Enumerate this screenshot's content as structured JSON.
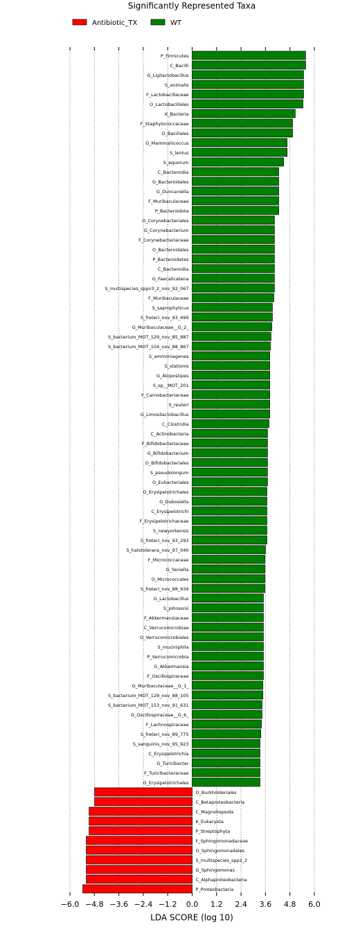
{
  "chart_data": {
    "type": "barh",
    "title": "Significantly Represented Taxa",
    "x_label": "LDA SCORE (log 10)",
    "categories": [
      "P_Firmicutes",
      "C_Bacilli",
      "G_Ligilactobacillus",
      "S_animalis",
      "F_Lactobacillaceae",
      "O_Lactobacillales",
      "K_Bacteria",
      "F_Staphylococcaceae",
      "O_Bacillales",
      "G_Mammaliicoccus",
      "S_lentus",
      "S_equorum",
      "C_Bacteroidia",
      "O_Bacteroidales",
      "G_Duncaniella",
      "F_Muribaculaceae",
      "P_Bacteroidota",
      "O_Corynebacteriales",
      "G_Corynebacterium",
      "F_Corynebacteriaceae",
      "O_Bacteroidales",
      "P_Bacteroidetes",
      "C_Bacteroidia",
      "G_Faecalicatena",
      "S_multispecies_sppn3_2_nov_92_067",
      "F_Muribaculaceae",
      "S_saprophyticus",
      "S_freteri_nov_93_699",
      "G_Muribaculaceae__G_2_",
      "S_bacterium_MOT_129_nov_85_887",
      "S_bacterium_MOT_104_nov_88_867",
      "S_ammoniagenes",
      "S_stationis",
      "G_Atopostipes",
      "S_sp__MOT_201",
      "F_Carnobacteriaceae",
      "S_reuteri",
      "G_Limosilactobacillus",
      "C_Clostridia",
      "C_Actinobacteria",
      "F_Bifidobacteriaceae",
      "G_Bifidobacterium",
      "O_Bifidobacteriales",
      "S_pseudolongum",
      "O_Eubacteriales",
      "O_Erysipelotrichales",
      "G_Dubosiella",
      "C_Erysipelotrichi",
      "F_Erysipelotrichaceae",
      "S_newyorkensis",
      "S_freteri_nov_93_293",
      "S_halotolerans_nov_97_040",
      "F_Micrococcaceae",
      "G_Yaniella",
      "O_Micrococcales",
      "S_freteri_nov_88_934",
      "G_Lactobacillus",
      "S_johnsonii",
      "F_Akkermansiaceae",
      "C_Verrucomicrobiae",
      "O_Verrucomicrobiales",
      "S_muciniphila",
      "P_Verrucomicrobia",
      "G_Akkermansia",
      "F_Oscillospiraceae",
      "G_Muribaculaceae__G_1_",
      "S_bacterium_MOT_129_nov_88_105",
      "S_bacterium_MOT_153_nov_91_631",
      "G_Oscillospiraceae__G_6_",
      "F_Lachnospiraceae",
      "S_freteri_nov_89_775",
      "S_sanguinis_nov_95_923",
      "C_Erysipelotrichia",
      "G_Turicibacter",
      "F_Turicibacteraceae",
      "O_Erysipelotrichales",
      "O_Burkholderiales",
      "C_Betaproteobacteria",
      "C_Magnoliopsida",
      "K_Eukaryota",
      "P_Streptophyta",
      "F_Sphingomonadaceae",
      "O_Sphingomonadales",
      "S_multispecies_spp2_2",
      "G_Sphingomonas",
      "C_Alphaproteobacteria",
      "P_Proteobacteria"
    ],
    "series": [
      {
        "name": "Antibiotic_TX",
        "color": "#ff0000",
        "values": [
          null,
          null,
          null,
          null,
          null,
          null,
          null,
          null,
          null,
          null,
          null,
          null,
          null,
          null,
          null,
          null,
          null,
          null,
          null,
          null,
          null,
          null,
          null,
          null,
          null,
          null,
          null,
          null,
          null,
          null,
          null,
          null,
          null,
          null,
          null,
          null,
          null,
          null,
          null,
          null,
          null,
          null,
          null,
          null,
          null,
          null,
          null,
          null,
          null,
          null,
          null,
          null,
          null,
          null,
          null,
          null,
          null,
          null,
          null,
          null,
          null,
          null,
          null,
          null,
          null,
          null,
          null,
          null,
          null,
          null,
          null,
          null,
          null,
          null,
          null,
          null,
          -4.79,
          -4.79,
          -5.06,
          -5.06,
          -5.06,
          -5.2,
          -5.2,
          -5.2,
          -5.2,
          -5.2,
          -5.37
        ]
      },
      {
        "name": "WT",
        "color": "#008000",
        "values": [
          5.57,
          5.57,
          5.47,
          5.47,
          5.47,
          5.44,
          5.06,
          4.93,
          4.93,
          4.66,
          4.66,
          4.49,
          4.25,
          4.25,
          4.25,
          4.25,
          4.25,
          4.04,
          4.04,
          4.04,
          4.04,
          4.04,
          4.04,
          4.04,
          4.04,
          4.01,
          3.94,
          3.94,
          3.91,
          3.87,
          3.84,
          3.81,
          3.81,
          3.81,
          3.81,
          3.81,
          3.81,
          3.81,
          3.77,
          3.7,
          3.7,
          3.7,
          3.7,
          3.7,
          3.7,
          3.67,
          3.67,
          3.67,
          3.67,
          3.67,
          3.67,
          3.6,
          3.57,
          3.57,
          3.57,
          3.57,
          3.5,
          3.5,
          3.5,
          3.5,
          3.5,
          3.5,
          3.5,
          3.5,
          3.5,
          3.47,
          3.47,
          3.43,
          3.43,
          3.4,
          3.37,
          3.33,
          3.33,
          3.33,
          3.33,
          3.33,
          null,
          null,
          null,
          null,
          null,
          null,
          null,
          null,
          null,
          null,
          null
        ]
      }
    ],
    "xlim": [
      -6.3,
      6.3
    ],
    "xticks": [
      {
        "value": -6.0,
        "label": "−6.0"
      },
      {
        "value": -4.8,
        "label": "−4.8"
      },
      {
        "value": -3.6,
        "label": "−3.6"
      },
      {
        "value": -2.4,
        "label": "−2.4"
      },
      {
        "value": -1.2,
        "label": "−1.2"
      },
      {
        "value": 0,
        "label": "0.0"
      },
      {
        "value": 1.2,
        "label": "1.2"
      },
      {
        "value": 2.4,
        "label": "2.4"
      },
      {
        "value": 3.6,
        "label": "3.6"
      },
      {
        "value": 4.8,
        "label": "4.8"
      },
      {
        "value": 6.0,
        "label": "6.0"
      }
    ],
    "grid": true
  }
}
